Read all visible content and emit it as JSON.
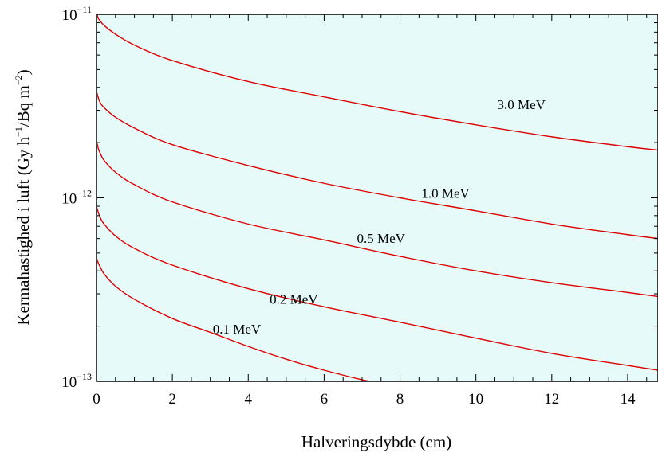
{
  "chart_data": {
    "type": "line",
    "title": "",
    "xlabel": "Halveringsdybde (cm)",
    "ylabel": {
      "base": "Kermahastighed i luft (Gy h",
      "exp1": "−1",
      "mid": "/Bq m",
      "exp2": "−2",
      "end": ")"
    },
    "xlim": [
      0,
      14.8
    ],
    "ylim": [
      1e-13,
      1e-11
    ],
    "yscale": "log",
    "grid": false,
    "background_color": "#e6fafa",
    "line_color": "#dd0000",
    "x_ticks": [
      {
        "value": 0,
        "label": "0"
      },
      {
        "value": 2,
        "label": "2"
      },
      {
        "value": 4,
        "label": "4"
      },
      {
        "value": 6,
        "label": "6"
      },
      {
        "value": 8,
        "label": "8"
      },
      {
        "value": 10,
        "label": "10"
      },
      {
        "value": 12,
        "label": "12"
      },
      {
        "value": 14,
        "label": "14"
      }
    ],
    "y_ticks": [
      {
        "value": 1e-13,
        "mantissa": "10",
        "exp": "−13"
      },
      {
        "value": 1e-12,
        "mantissa": "10",
        "exp": "−12"
      },
      {
        "value": 1e-11,
        "mantissa": "10",
        "exp": "−11"
      }
    ],
    "series": [
      {
        "name": "3.0 MeV",
        "x": [
          0,
          0.05,
          0.1,
          0.2,
          0.5,
          1,
          2,
          4,
          6,
          8,
          10,
          12,
          14,
          14.8
        ],
        "y": [
          1.02e-11,
          9.5e-12,
          9.2e-12,
          8.7e-12,
          7.8e-12,
          6.8e-12,
          5.6e-12,
          4.3e-12,
          3.55e-12,
          2.95e-12,
          2.5e-12,
          2.15e-12,
          1.9e-12,
          1.82e-12
        ]
      },
      {
        "name": "1.0 MeV",
        "x": [
          0,
          0.05,
          0.1,
          0.2,
          0.5,
          1,
          2,
          4,
          6,
          8,
          10,
          12,
          14,
          14.8
        ],
        "y": [
          3.8e-12,
          3.5e-12,
          3.3e-12,
          3.1e-12,
          2.75e-12,
          2.4e-12,
          1.95e-12,
          1.5e-12,
          1.2e-12,
          1e-12,
          8.5e-13,
          7.2e-13,
          6.3e-13,
          6e-13
        ]
      },
      {
        "name": "0.5 MeV",
        "x": [
          0,
          0.05,
          0.1,
          0.2,
          0.5,
          1,
          2,
          4,
          6,
          8,
          10,
          12,
          14,
          14.8
        ],
        "y": [
          2.05e-12,
          1.85e-12,
          1.75e-12,
          1.6e-12,
          1.38e-12,
          1.18e-12,
          9.5e-13,
          7.2e-13,
          5.9e-13,
          4.8e-13,
          4e-13,
          3.45e-13,
          3.05e-13,
          2.9e-13
        ]
      },
      {
        "name": "0.2 MeV",
        "x": [
          0,
          0.05,
          0.1,
          0.2,
          0.5,
          1,
          2,
          4,
          6,
          8,
          10,
          12,
          14,
          14.8
        ],
        "y": [
          9e-13,
          8.3e-13,
          7.8e-13,
          7.2e-13,
          6.2e-13,
          5.3e-13,
          4.3e-13,
          3.2e-13,
          2.55e-13,
          2.1e-13,
          1.72e-13,
          1.42e-13,
          1.22e-13,
          1.15e-13
        ]
      },
      {
        "name": "0.1 MeV",
        "x": [
          0,
          0.05,
          0.1,
          0.2,
          0.5,
          1,
          2,
          3,
          4,
          5,
          6,
          7,
          7.25
        ],
        "y": [
          4.7e-13,
          4.4e-13,
          4.2e-13,
          3.85e-13,
          3.3e-13,
          2.8e-13,
          2.2e-13,
          1.85e-13,
          1.55e-13,
          1.32e-13,
          1.15e-13,
          1.02e-13,
          1e-13
        ]
      }
    ],
    "series_labels": [
      {
        "text": "3.0 MeV",
        "x": 11.2,
        "y": 3.05e-12
      },
      {
        "text": "1.0 MeV",
        "x": 9.2,
        "y": 1e-12
      },
      {
        "text": "0.5 MeV",
        "x": 7.5,
        "y": 5.7e-13
      },
      {
        "text": "0.2 MeV",
        "x": 5.2,
        "y": 2.65e-13
      },
      {
        "text": "0.1 MeV",
        "x": 3.7,
        "y": 1.82e-13
      }
    ]
  }
}
